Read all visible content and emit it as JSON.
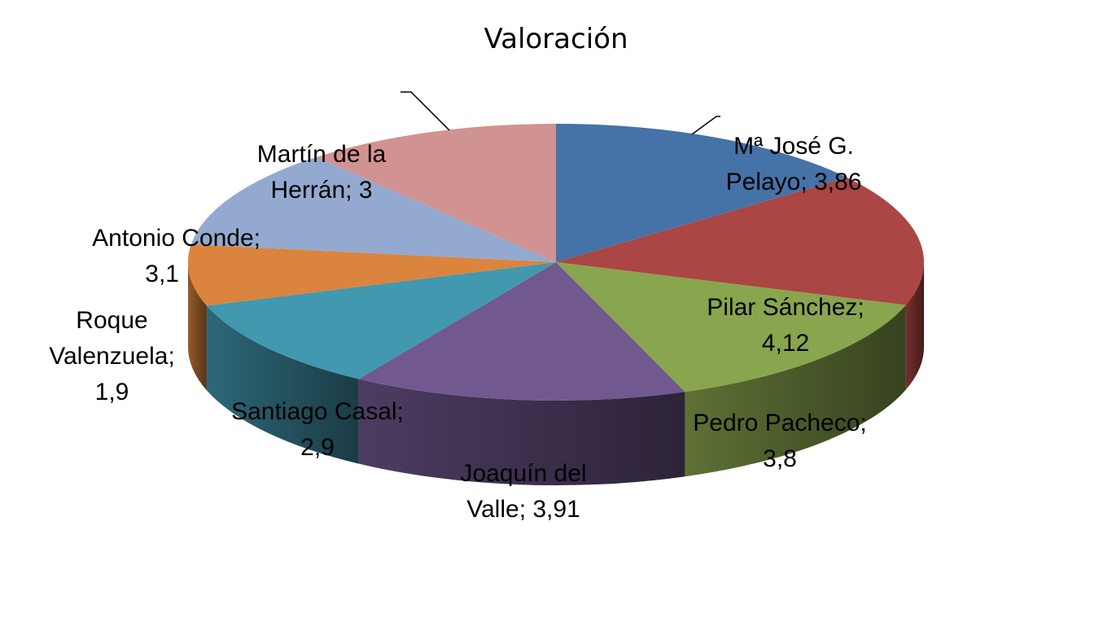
{
  "chart_data": {
    "type": "pie",
    "title": "Valoración",
    "three_d": true,
    "slices": [
      {
        "name": "Mª José G. Pelayo",
        "value": 3.86,
        "label_l1": "Mª José G.",
        "label_l2": "Pelayo; 3,86",
        "color": "#4572a7"
      },
      {
        "name": "Pilar Sánchez",
        "value": 4.12,
        "label_l1": "Pilar Sánchez;",
        "label_l2": "4,12",
        "color": "#aa4643"
      },
      {
        "name": "Pedro Pacheco",
        "value": 3.8,
        "label_l1": "Pedro Pacheco;",
        "label_l2": "3,8",
        "color": "#89a54e"
      },
      {
        "name": "Joaquín del Valle",
        "value": 3.91,
        "label_l1": "Joaquín del",
        "label_l2": "Valle; 3,91",
        "color": "#71588f"
      },
      {
        "name": "Santiago Casal",
        "value": 2.9,
        "label_l1": "Santiago Casal;",
        "label_l2": "2,9",
        "color": "#4198af"
      },
      {
        "name": "Roque Valenzuela",
        "value": 1.9,
        "label_l1": "Roque",
        "label_l2": "Valenzuela;",
        "label_l3": "1,9",
        "color": "#db843d"
      },
      {
        "name": "Antonio Conde",
        "value": 3.1,
        "label_l1": "Antonio Conde;",
        "label_l2": "3,1",
        "color": "#93a9cf"
      },
      {
        "name": "Martín de la Herrán",
        "value": 3,
        "label_l1": "Martín de la",
        "label_l2": "Herrán; 3",
        "color": "#d19392"
      }
    ]
  }
}
